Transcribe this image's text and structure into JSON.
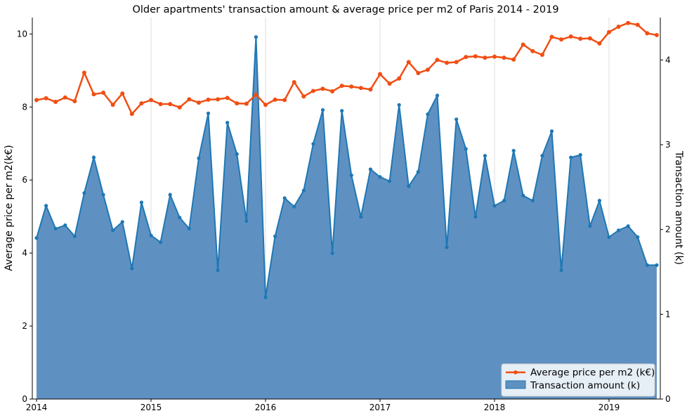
{
  "chart_data": {
    "type": "line+area",
    "title": "Older apartments' transaction amount & average price per m2 of Paris 2014 - 2019",
    "x_tick_labels": [
      "2014",
      "2015",
      "2016",
      "2017",
      "2018",
      "2019"
    ],
    "x_start": "2014-01",
    "x_end": "2019-06",
    "left_axis": {
      "label": "Average price per m2(k€)",
      "ylim": [
        0,
        10.45
      ],
      "ticks": [
        "0",
        "2",
        "4",
        "6",
        "8",
        "10"
      ]
    },
    "right_axis": {
      "label": "Transaction amount (k)",
      "ylim": [
        0,
        4.5
      ],
      "ticks": [
        "0",
        "1",
        "2",
        "3",
        "4"
      ]
    },
    "grid": "vertical-at-year-ticks",
    "legend_placement": "bottom-right",
    "series": [
      {
        "name": "Average price per m2 (k€)",
        "axis": "left",
        "style": "line-markers",
        "color": "#f04e13",
        "values": [
          8.19,
          8.24,
          8.14,
          8.26,
          8.16,
          8.94,
          8.35,
          8.39,
          8.06,
          8.37,
          7.81,
          8.1,
          8.19,
          8.08,
          8.08,
          7.99,
          8.21,
          8.12,
          8.2,
          8.21,
          8.25,
          8.1,
          8.09,
          8.34,
          8.06,
          8.2,
          8.19,
          8.68,
          8.29,
          8.44,
          8.5,
          8.43,
          8.58,
          8.56,
          8.52,
          8.48,
          8.9,
          8.64,
          8.78,
          9.23,
          8.93,
          9.02,
          9.29,
          9.21,
          9.23,
          9.37,
          9.39,
          9.35,
          9.38,
          9.35,
          9.3,
          9.71,
          9.53,
          9.43,
          9.92,
          9.85,
          9.93,
          9.87,
          9.88,
          9.74,
          10.05,
          10.2,
          10.3,
          10.25,
          10.02,
          9.97
        ]
      },
      {
        "name": "Transaction amount (k)",
        "axis": "right",
        "style": "area-line-markers",
        "color": "#1f77b4",
        "fill_color": "#5e91c2",
        "values": [
          1.9,
          2.28,
          2.01,
          2.05,
          1.92,
          2.43,
          2.85,
          2.41,
          1.99,
          2.09,
          1.54,
          2.32,
          1.93,
          1.85,
          2.41,
          2.14,
          2.01,
          2.84,
          3.37,
          1.52,
          3.26,
          2.89,
          2.1,
          4.27,
          1.2,
          1.92,
          2.37,
          2.27,
          2.46,
          3.01,
          3.41,
          1.72,
          3.4,
          2.64,
          2.15,
          2.71,
          2.62,
          2.57,
          3.47,
          2.51,
          2.68,
          3.36,
          3.58,
          1.79,
          3.3,
          2.95,
          2.15,
          2.87,
          2.28,
          2.34,
          2.93,
          2.4,
          2.34,
          2.87,
          3.16,
          1.52,
          2.85,
          2.88,
          2.04,
          2.34,
          1.91,
          1.99,
          2.04,
          1.91,
          1.58,
          1.58
        ]
      }
    ]
  }
}
